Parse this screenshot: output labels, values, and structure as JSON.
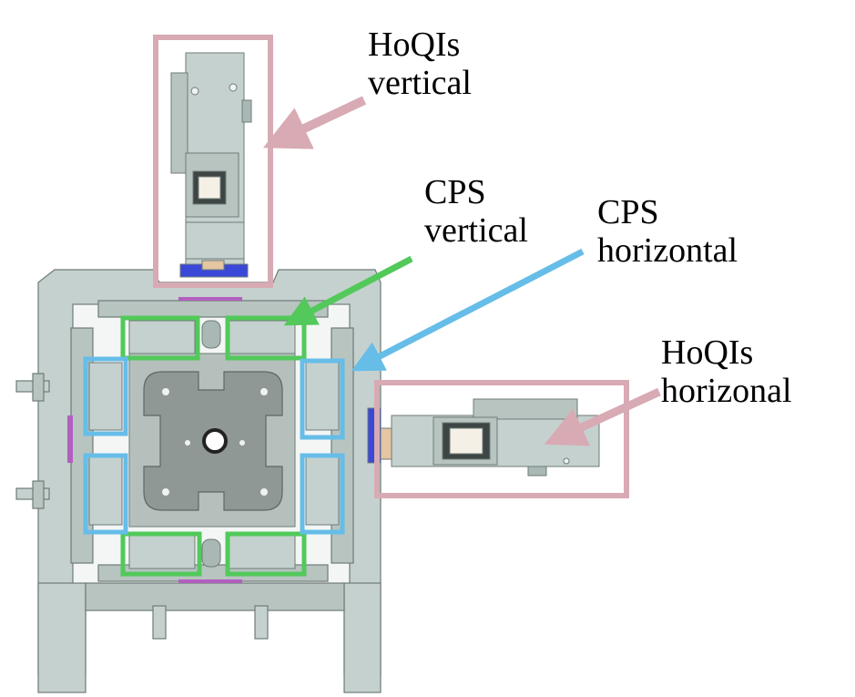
{
  "labels": {
    "hoqis_vertical": [
      "HoQIs",
      "vertical"
    ],
    "cps_vertical": [
      "CPS",
      "vertical"
    ],
    "cps_horizontal": [
      "CPS",
      "horizontal"
    ],
    "hoqis_horizontal": [
      "HoQIs",
      "horizonal"
    ]
  },
  "colors": {
    "hoqis_box": "#d8aab4",
    "cps_vertical": "#52c95a",
    "cps_horizontal": "#66bde8",
    "metal": "#c5d1ce",
    "metal_dark": "#a9b8b4",
    "plate": "#8f9895",
    "edge": "#6f7b78",
    "blue_part": "#3a48d8",
    "brass": "#e4c6a2"
  }
}
